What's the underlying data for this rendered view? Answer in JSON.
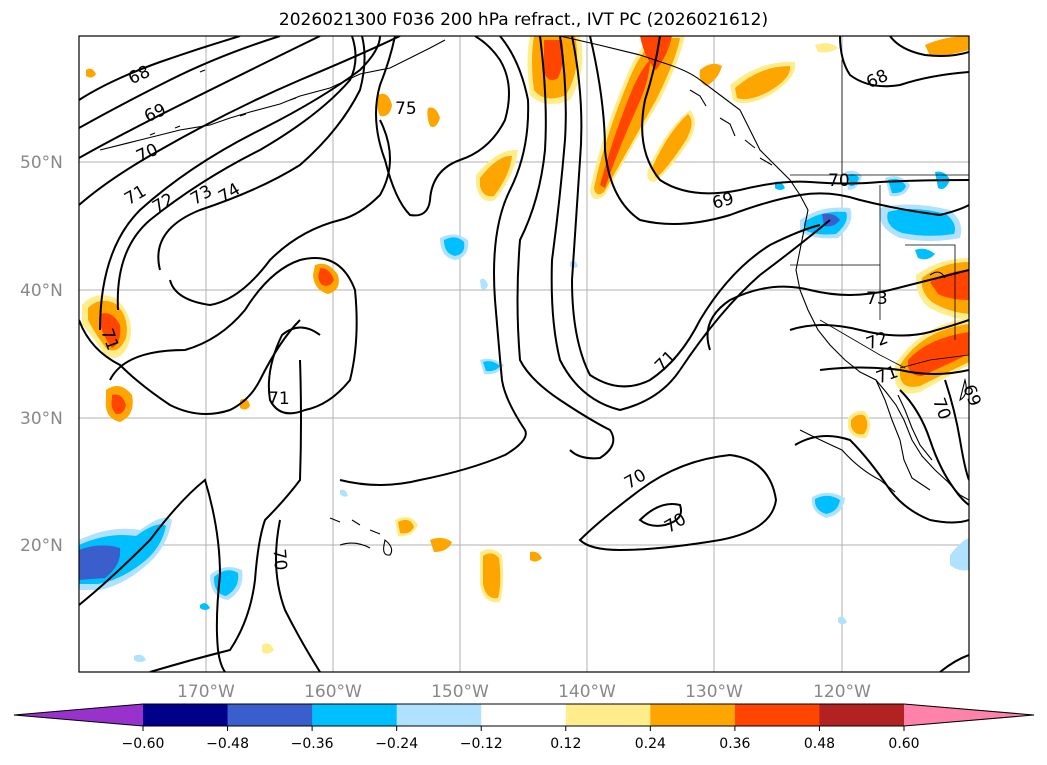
{
  "title": "2026021300 F036 200 hPa refract., IVT PC (2026021612)",
  "lat_labels": [
    "50°N",
    "40°N",
    "30°N",
    "20°N"
  ],
  "lon_labels": [
    "170°W",
    "160°W",
    "150°W",
    "140°W",
    "130°W",
    "120°W"
  ],
  "colorbar": {
    "ticks": [
      "−0.60",
      "−0.48",
      "−0.36",
      "−0.24",
      "−0.12",
      "0.12",
      "0.24",
      "0.36",
      "0.48",
      "0.60"
    ],
    "colors": [
      "#9932cc",
      "#00008b",
      "#3a5fcd",
      "#00bfff",
      "#b0e2ff",
      "#ffffff",
      "#ffec8b",
      "#ffa500",
      "#ff4500",
      "#b22222",
      "#ff82ab"
    ]
  },
  "contour_labels": [
    "68",
    "69",
    "70",
    "71",
    "72",
    "73",
    "74",
    "75",
    "71",
    "70",
    "71",
    "69",
    "70",
    "73",
    "72",
    "71",
    "70",
    "71",
    "70",
    "68",
    "70",
    "69"
  ],
  "legend_colors": {
    "contour": "#000000",
    "grid": "#b0b0b0",
    "tick_text": "#888888"
  }
}
